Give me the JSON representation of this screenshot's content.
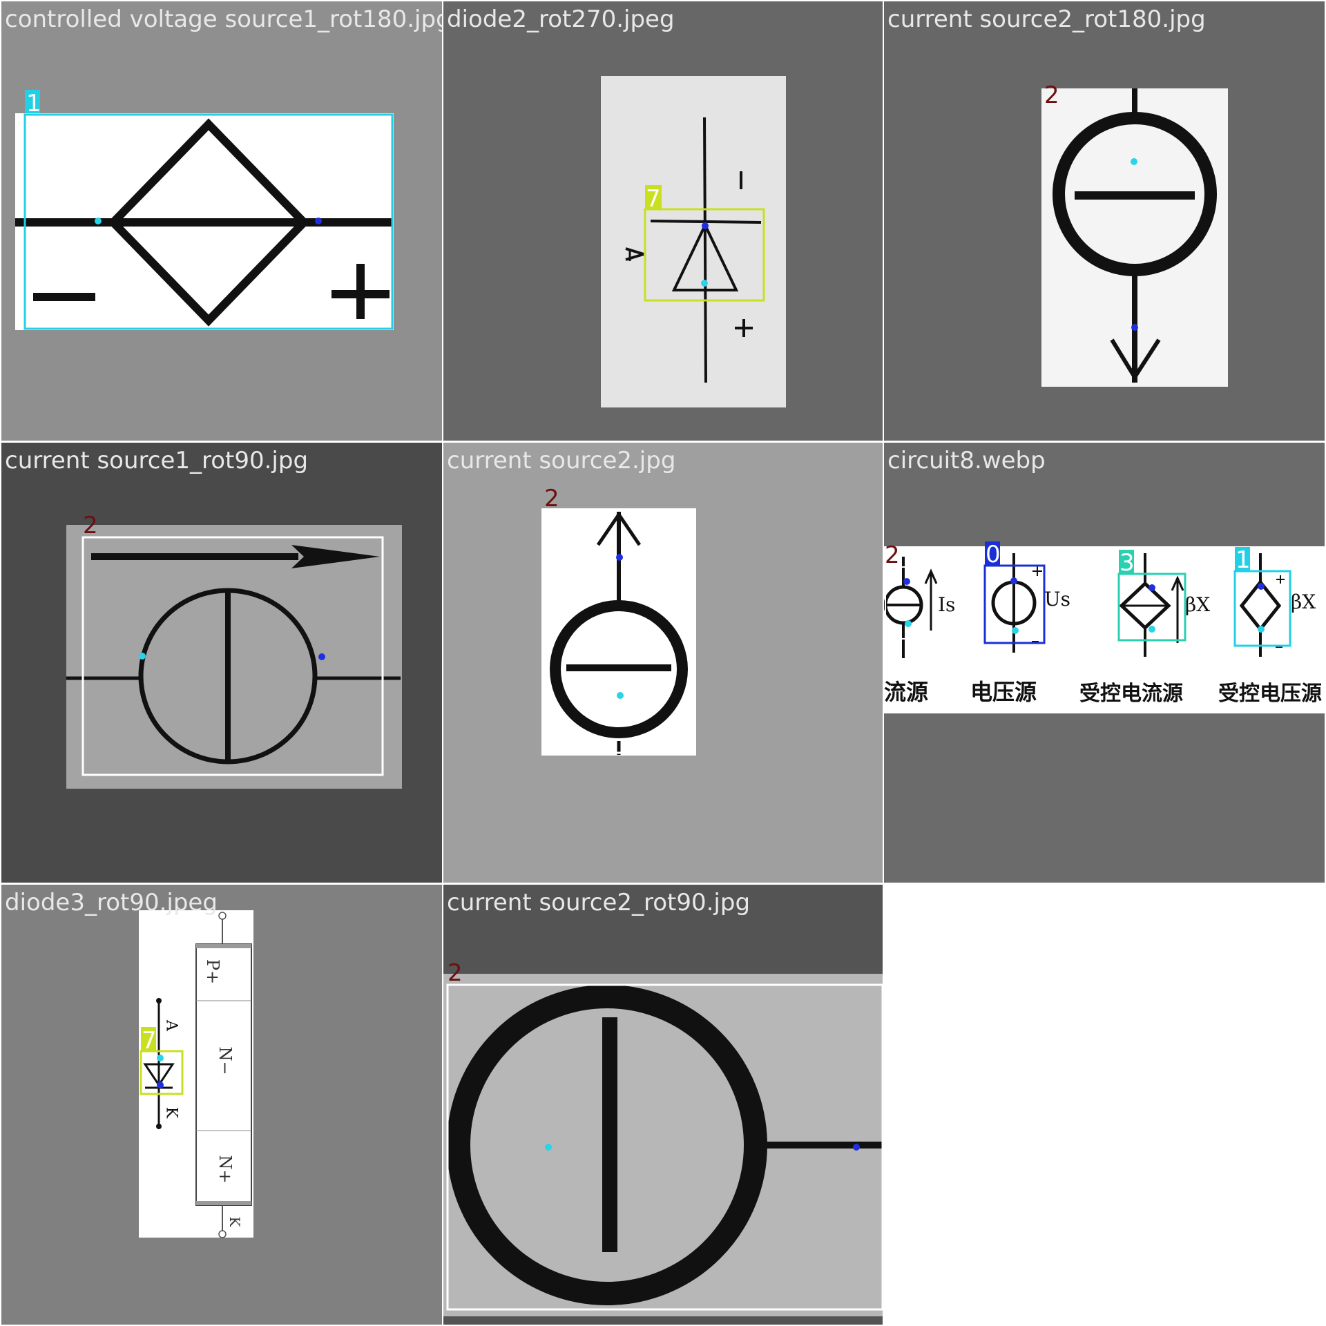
{
  "tiles": [
    {
      "filename": "controlled voltage source1_rot180.jpg",
      "bg": "#8f8f8f",
      "labels": [
        "1"
      ]
    },
    {
      "filename": "diode2_rot270.jpeg",
      "bg": "#676767",
      "labels": [
        "7"
      ]
    },
    {
      "filename": "current source2_rot180.jpg",
      "bg": "#676767",
      "labels": [
        "2"
      ]
    },
    {
      "filename": "current source1_rot90.jpg",
      "bg": "#4a4a4a",
      "labels": [
        "2"
      ]
    },
    {
      "filename": "current source2.jpg",
      "bg": "#9f9f9f",
      "labels": [
        "2"
      ]
    },
    {
      "filename": "circuit8.webp",
      "bg": "#6b6b6b",
      "labels": [
        "2",
        "0",
        "3",
        "1"
      ],
      "texts": [
        "Is",
        "Us",
        "βX",
        "βX",
        "流源",
        "电压源",
        "受控电流源",
        "受控电压源"
      ]
    },
    {
      "filename": "diode3_rot90.jpeg",
      "bg": "#808080",
      "labels": [
        "7"
      ],
      "texts": [
        "P+",
        "N−",
        "N+",
        "A",
        "K",
        "K"
      ]
    },
    {
      "filename": "current source2_rot90.jpg",
      "bg": "#545454",
      "labels": [
        "2"
      ]
    }
  ],
  "colors": {
    "class0": "#1a2fd6",
    "class1": "#22d0e6",
    "class2": "#ffffff",
    "class3": "#2ad0b0",
    "class7": "#c8e020",
    "label2_text": "#6b1010",
    "kp_dark": "#1f2fe0",
    "kp_light": "#29d3e8"
  }
}
